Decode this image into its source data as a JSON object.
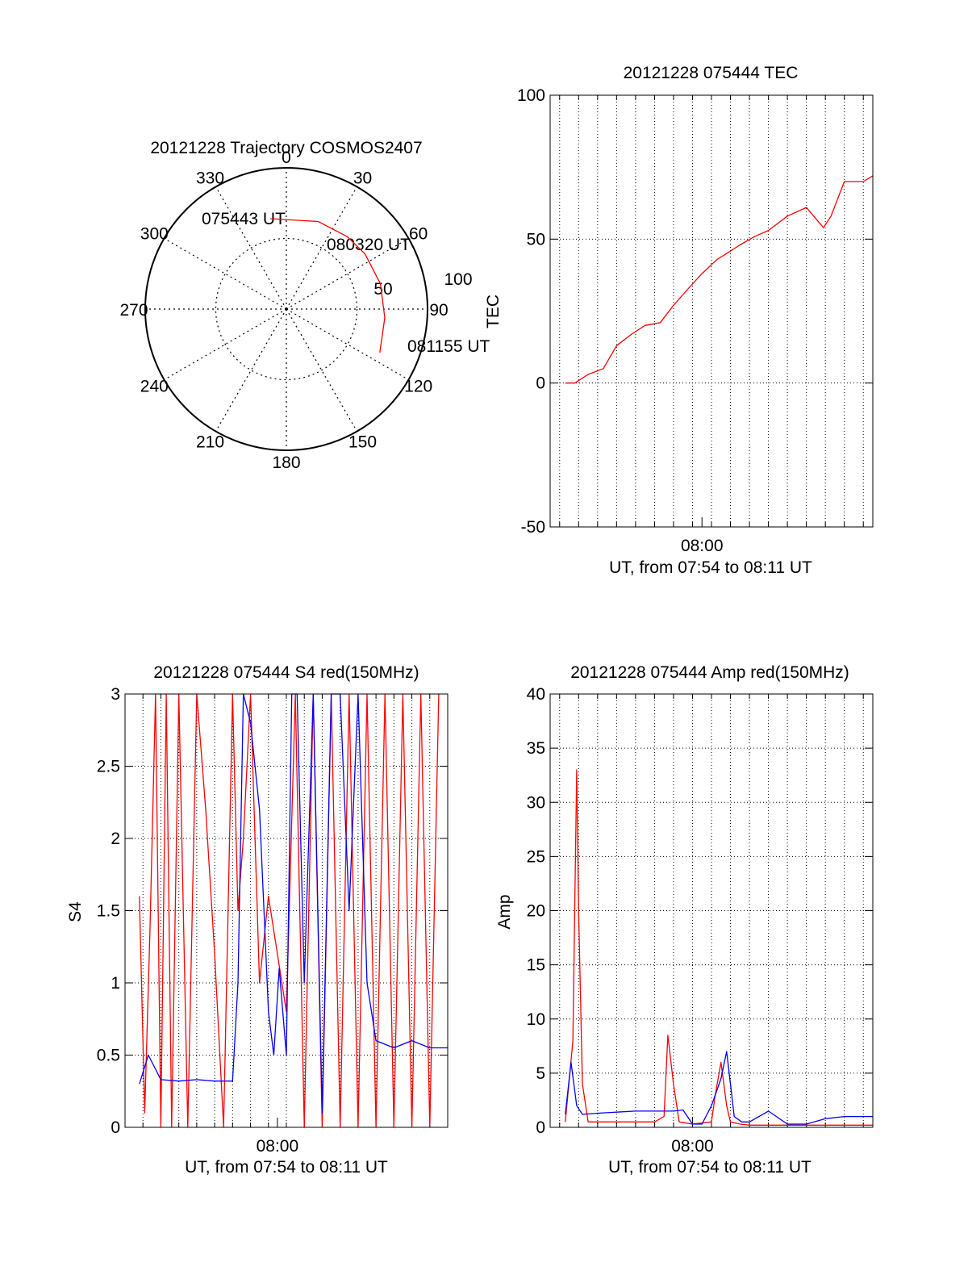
{
  "colors": {
    "red_series": "#ff0000",
    "blue_series": "#0000ff",
    "axis": "#000000",
    "grid": "#000000"
  },
  "chart_data": [
    {
      "type": "polar",
      "title": "20121228 Trajectory COSMOS2407",
      "angle_labels": [
        "0",
        "30",
        "60",
        "90",
        "120",
        "150",
        "180",
        "210",
        "240",
        "270",
        "300",
        "330"
      ],
      "radius_labels": [
        "50",
        "100"
      ],
      "grid": true,
      "series": [
        {
          "color": "#ff0000",
          "points": [
            {
              "time_label": "075443 UT",
              "azimuth": 350,
              "radius": 65
            },
            {
              "azimuth": 20,
              "radius": 66
            },
            {
              "azimuth": 40,
              "radius": 67
            },
            {
              "time_label": "080320 UT",
              "azimuth": 55,
              "radius": 68
            },
            {
              "azimuth": 75,
              "radius": 69
            },
            {
              "azimuth": 95,
              "radius": 70
            },
            {
              "time_label": "081155 UT",
              "azimuth": 115,
              "radius": 73
            }
          ]
        }
      ]
    },
    {
      "type": "line",
      "title": "20121228 075444 TEC",
      "ylabel": "TEC",
      "xlabel": "UT, from 07:54 to 08:11 UT",
      "x_tick_labels": [
        "08:00"
      ],
      "y_tick_labels": [
        "-50",
        "0",
        "50",
        "100"
      ],
      "ylim": [
        -50,
        100
      ],
      "xlim_minutes": [
        7.5,
        24.5
      ],
      "grid": true,
      "series": [
        {
          "color": "#ff0000",
          "x_minutes": [
            8.3,
            8.8,
            9.5,
            10.3,
            11.0,
            11.8,
            12.5,
            13.3,
            14.0,
            14.8,
            15.5,
            16.3,
            16.8,
            17.5,
            18.3,
            19.0,
            20.0,
            21.0,
            21.9,
            22.3,
            23.0,
            24.0,
            24.5
          ],
          "values": [
            0,
            0,
            3,
            5,
            13,
            17,
            20,
            21,
            27,
            33,
            38,
            43,
            45,
            48,
            51,
            53,
            58,
            61,
            54,
            58,
            70,
            70,
            72
          ]
        }
      ]
    },
    {
      "type": "line",
      "title": "20121228 075444 S4 red(150MHz)",
      "ylabel": "S4",
      "xlabel": "UT, from 07:54 to 08:11 UT",
      "x_tick_labels": [
        "08:00"
      ],
      "y_tick_labels": [
        "0",
        "0.5",
        "1",
        "1.5",
        "2",
        "2.5",
        "3"
      ],
      "ylim": [
        0,
        3
      ],
      "xlim_minutes": [
        7.0,
        25.0
      ],
      "grid": true,
      "series": [
        {
          "color": "#ff0000",
          "x_minutes": [
            7.8,
            8.1,
            8.4,
            8.7,
            9.0,
            9.3,
            9.6,
            10.0,
            10.5,
            11.0,
            11.5,
            12.0,
            12.5,
            13.0,
            13.3,
            13.6,
            14.0,
            14.5,
            15.0,
            15.5,
            16.0,
            16.5,
            17.0,
            17.5,
            18.0,
            18.5,
            19.0,
            19.5,
            20.0,
            20.5,
            21.0,
            21.5,
            22.0,
            22.5,
            23.0,
            23.5,
            24.0,
            24.5
          ],
          "values": [
            1.6,
            0.1,
            1.4,
            3.0,
            0,
            3.0,
            0,
            3.0,
            0,
            3.0,
            2.2,
            1.2,
            0,
            3.0,
            1.5,
            2.0,
            3.0,
            1.0,
            1.6,
            1.2,
            0.8,
            3.0,
            0,
            3.0,
            0,
            3.0,
            0,
            3.0,
            0,
            3.0,
            0,
            3.0,
            0,
            3.0,
            0,
            3.0,
            0,
            3.0
          ]
        },
        {
          "color": "#0000ff",
          "x_minutes": [
            7.8,
            8.3,
            9.0,
            10.0,
            11.0,
            12.0,
            13.0,
            13.3,
            13.6,
            14.0,
            14.5,
            15.0,
            15.3,
            15.6,
            16.0,
            16.3,
            16.6,
            17.0,
            17.5,
            18.0,
            18.5,
            19.0,
            19.5,
            20.0,
            20.5,
            21.0,
            22.0,
            23.0,
            24.0,
            25.0
          ],
          "values": [
            0.3,
            0.5,
            0.33,
            0.32,
            0.33,
            0.32,
            0.32,
            1.0,
            3.0,
            2.8,
            2.2,
            0.8,
            0.5,
            1.1,
            0.5,
            3.0,
            3.0,
            1.0,
            3.0,
            0.1,
            3.0,
            3.0,
            1.5,
            3.0,
            1.0,
            0.6,
            0.55,
            0.6,
            0.55,
            0.55
          ]
        }
      ]
    },
    {
      "type": "line",
      "title": "20121228 075444 Amp red(150MHz)",
      "ylabel": "Amp",
      "xlabel": "UT, from 07:54 to 08:11 UT",
      "x_tick_labels": [
        "08:00"
      ],
      "y_tick_labels": [
        "0",
        "5",
        "10",
        "15",
        "20",
        "25",
        "30",
        "35",
        "40"
      ],
      "ylim": [
        0,
        40
      ],
      "xlim_minutes": [
        7.5,
        24.5
      ],
      "grid": true,
      "series": [
        {
          "color": "#ff0000",
          "x_minutes": [
            8.3,
            8.7,
            8.9,
            9.0,
            9.2,
            9.5,
            10.0,
            12.0,
            13.0,
            13.5,
            13.7,
            14.0,
            14.3,
            15.0,
            16.0,
            16.2,
            16.5,
            16.8,
            17.0,
            17.5,
            18.0,
            24.5
          ],
          "values": [
            0.5,
            8,
            33,
            20,
            4,
            0.5,
            0.5,
            0.5,
            0.5,
            1,
            8.5,
            4,
            0.5,
            0.3,
            0.5,
            3,
            6,
            2,
            0.5,
            0.3,
            0.2,
            0.2
          ]
        },
        {
          "color": "#0000ff",
          "x_minutes": [
            8.3,
            8.6,
            8.9,
            9.2,
            10.0,
            11.0,
            12.0,
            13.0,
            14.0,
            14.5,
            15.0,
            15.5,
            16.0,
            16.5,
            16.8,
            17.2,
            17.6,
            18.0,
            19.0,
            20.0,
            21.0,
            22.0,
            23.0,
            24.0,
            24.5
          ],
          "values": [
            1.2,
            6,
            2,
            1.2,
            1.3,
            1.4,
            1.5,
            1.5,
            1.5,
            1.6,
            0.3,
            0.3,
            2,
            4.5,
            7,
            1,
            0.5,
            0.5,
            1.5,
            0.3,
            0.3,
            0.8,
            1,
            1,
            1
          ]
        }
      ]
    }
  ]
}
